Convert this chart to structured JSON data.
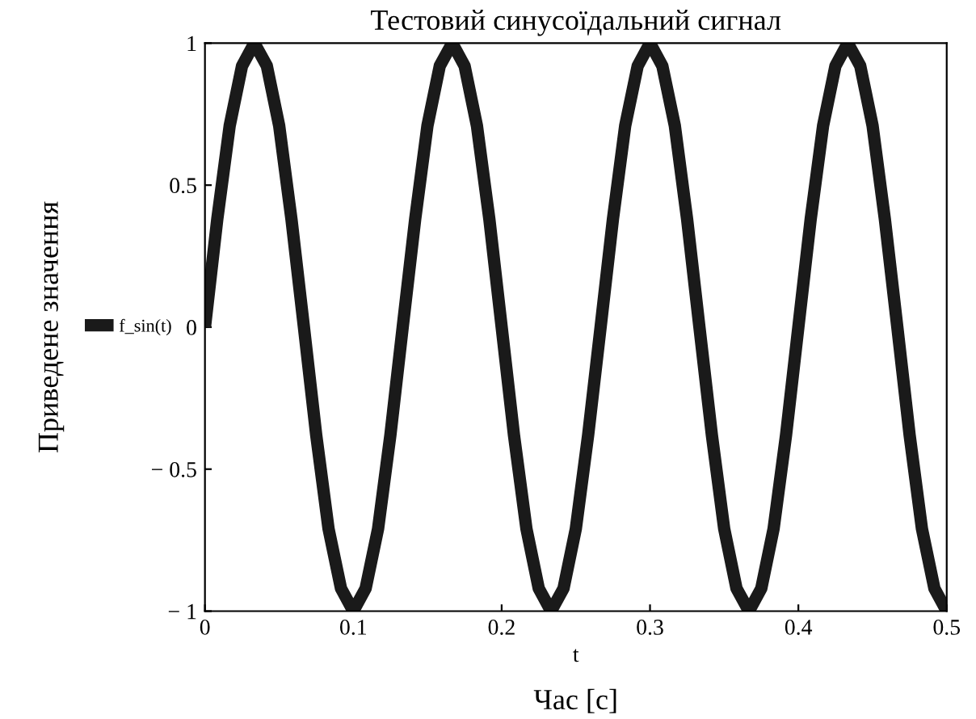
{
  "chart_data": {
    "type": "line",
    "title": "Тестовий синусоїдальний сигнал",
    "xlabel": "t",
    "ylabel": "Приведене значення",
    "annotations": [
      "Час [с]"
    ],
    "x": [
      0,
      0.0083,
      0.0167,
      0.025,
      0.0333,
      0.0417,
      0.05,
      0.0583,
      0.0667,
      0.075,
      0.0833,
      0.0917,
      0.1,
      0.1083,
      0.1167,
      0.125,
      0.1333,
      0.1417,
      0.15,
      0.1583,
      0.1667,
      0.175,
      0.1833,
      0.1917,
      0.2,
      0.2083,
      0.2167,
      0.225,
      0.2333,
      0.2417,
      0.25,
      0.2583,
      0.2667,
      0.275,
      0.2833,
      0.2917,
      0.3,
      0.3083,
      0.3167,
      0.325,
      0.3333,
      0.3417,
      0.35,
      0.3583,
      0.3667,
      0.375,
      0.3833,
      0.3917,
      0.4,
      0.4083,
      0.4167,
      0.425,
      0.4333,
      0.4417,
      0.45,
      0.4583,
      0.4667,
      0.475,
      0.4833,
      0.4917,
      0.5
    ],
    "series": [
      {
        "name": "f_sin(t)",
        "color": "#1a1a1a",
        "values": [
          0,
          0.38,
          0.71,
          0.92,
          1,
          0.92,
          0.71,
          0.38,
          0,
          -0.38,
          -0.71,
          -0.92,
          -1,
          -0.92,
          -0.71,
          -0.38,
          0,
          0.38,
          0.71,
          0.92,
          1,
          0.92,
          0.71,
          0.38,
          0,
          -0.38,
          -0.71,
          -0.92,
          -1,
          -0.92,
          -0.71,
          -0.38,
          0,
          0.38,
          0.71,
          0.92,
          1,
          0.92,
          0.71,
          0.38,
          0,
          -0.38,
          -0.71,
          -0.92,
          -1,
          -0.92,
          -0.71,
          -0.38,
          0,
          0.38,
          0.71,
          0.92,
          1,
          0.92,
          0.71,
          0.38,
          0,
          -0.38,
          -0.71,
          -0.92,
          -1
        ]
      }
    ],
    "xlim": [
      0,
      0.5
    ],
    "ylim": [
      -1,
      1
    ],
    "xticks": [
      0,
      0.1,
      0.2,
      0.3,
      0.4,
      0.5
    ],
    "yticks": [
      1,
      0.5,
      0,
      {
        "value": -0.5,
        "label": "− 0.5"
      },
      {
        "value": -1,
        "label": "− 1"
      }
    ],
    "legend": "left",
    "line_style": "solid",
    "grid": false
  }
}
